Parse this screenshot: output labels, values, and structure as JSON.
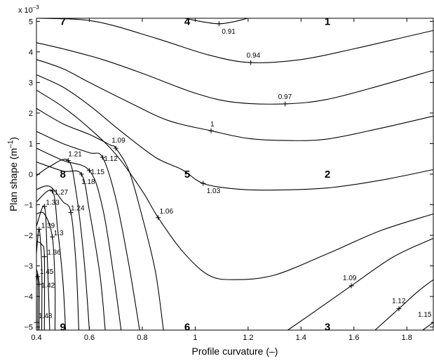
{
  "chart_data": {
    "type": "contour",
    "xlabel": "Profile curvature (–)",
    "ylabel_main": "Plan shape (m",
    "ylabel_sup": "–1",
    "ylabel_close": ")",
    "y_multiplier": "x 10",
    "y_multiplier_exp": "–3",
    "xlim": [
      0.4,
      1.9
    ],
    "ylim": [
      -5.1,
      5.1
    ],
    "x_ticks": [
      0.4,
      0.6,
      0.8,
      1,
      1.2,
      1.4,
      1.6,
      1.8
    ],
    "x_tick_labels": [
      "0.4",
      "0.6",
      "0.8",
      "1",
      "1.2",
      "1.4",
      "1.6",
      "1.8"
    ],
    "y_ticks": [
      5,
      4,
      3,
      2,
      1,
      0,
      -1,
      -2,
      -3,
      -4,
      -5
    ],
    "y_tick_labels": [
      "5",
      "4",
      "3",
      "2",
      "1",
      "0",
      "−1",
      "−2",
      "−3",
      "−4",
      "−5"
    ],
    "contours": [
      {
        "level": "0.91",
        "points": [
          [
            0.96,
            5.1
          ],
          [
            1.09,
            4.92
          ],
          [
            1.2,
            5.1
          ]
        ]
      },
      {
        "level": "0.94",
        "points": [
          [
            0.41,
            5.1
          ],
          [
            0.62,
            5.0
          ],
          [
            0.85,
            4.45
          ],
          [
            1.05,
            3.9
          ],
          [
            1.21,
            3.65
          ],
          [
            1.4,
            3.75
          ],
          [
            1.6,
            4.1
          ],
          [
            1.8,
            4.5
          ],
          [
            1.9,
            4.7
          ]
        ]
      },
      {
        "level": "0.97",
        "points": [
          [
            0.4,
            4.3
          ],
          [
            0.5,
            4.1
          ],
          [
            0.65,
            3.75
          ],
          [
            0.8,
            3.3
          ],
          [
            1.0,
            2.65
          ],
          [
            1.15,
            2.35
          ],
          [
            1.34,
            2.3
          ],
          [
            1.5,
            2.45
          ],
          [
            1.7,
            2.9
          ],
          [
            1.9,
            3.4
          ]
        ]
      },
      {
        "level": "1",
        "points": [
          [
            0.4,
            3.75
          ],
          [
            0.5,
            3.45
          ],
          [
            0.6,
            3.0
          ],
          [
            0.75,
            2.35
          ],
          [
            0.9,
            1.75
          ],
          [
            1.06,
            1.42
          ],
          [
            1.2,
            1.17
          ],
          [
            1.35,
            1.1
          ],
          [
            1.5,
            1.15
          ],
          [
            1.7,
            1.5
          ],
          [
            1.9,
            1.9
          ]
        ]
      },
      {
        "level": "1.03",
        "points": [
          [
            0.4,
            3.25
          ],
          [
            0.5,
            2.85
          ],
          [
            0.6,
            2.25
          ],
          [
            0.72,
            1.4
          ],
          [
            0.85,
            0.55
          ],
          [
            0.95,
            0.15
          ],
          [
            1.03,
            -0.3
          ],
          [
            1.15,
            -0.48
          ],
          [
            1.3,
            -0.52
          ],
          [
            1.5,
            -0.45
          ],
          [
            1.7,
            -0.2
          ],
          [
            1.9,
            0.15
          ]
        ]
      },
      {
        "level": "1.06",
        "points": [
          [
            0.4,
            2.75
          ],
          [
            0.5,
            2.2
          ],
          [
            0.6,
            1.5
          ],
          [
            0.7,
            0.65
          ],
          [
            0.8,
            -0.55
          ],
          [
            0.86,
            -1.42
          ],
          [
            0.95,
            -2.5
          ],
          [
            1.05,
            -3.3
          ],
          [
            1.15,
            -3.45
          ],
          [
            1.3,
            -3.3
          ],
          [
            1.5,
            -2.6
          ],
          [
            1.7,
            -1.85
          ],
          [
            1.9,
            -1.3
          ]
        ]
      },
      {
        "level": "1.09",
        "points": [
          [
            0.4,
            2.15
          ],
          [
            0.5,
            1.65
          ],
          [
            0.6,
            1.3
          ],
          [
            0.68,
            0.95
          ],
          [
            0.7,
            0.85
          ],
          [
            0.75,
            0.1
          ],
          [
            0.8,
            -1.4
          ],
          [
            0.85,
            -3.2
          ],
          [
            0.88,
            -5.1
          ]
        ]
      },
      {
        "level": "1.09",
        "points": [
          [
            1.35,
            -5.1
          ],
          [
            1.45,
            -4.5
          ],
          [
            1.59,
            -3.65
          ],
          [
            1.75,
            -2.7
          ],
          [
            1.9,
            -2.1
          ]
        ]
      },
      {
        "level": "1.12",
        "points": [
          [
            0.4,
            1.4
          ],
          [
            0.5,
            1.0
          ],
          [
            0.6,
            0.7
          ],
          [
            0.65,
            0.55
          ],
          [
            0.7,
            -0.8
          ],
          [
            0.75,
            -3.0
          ],
          [
            0.79,
            -5.1
          ]
        ]
      },
      {
        "level": "1.12",
        "points": [
          [
            1.68,
            -5.1
          ],
          [
            1.77,
            -4.4
          ],
          [
            1.84,
            -3.85
          ],
          [
            1.9,
            -3.45
          ]
        ]
      },
      {
        "level": "1.15",
        "points": [
          [
            0.4,
            0.85
          ],
          [
            0.5,
            0.45
          ],
          [
            0.6,
            0.12
          ],
          [
            0.65,
            -1.1
          ],
          [
            0.69,
            -3.2
          ],
          [
            0.72,
            -5.1
          ]
        ]
      },
      {
        "level": "1.15",
        "points": [
          [
            1.86,
            -5.1
          ],
          [
            1.9,
            -4.85
          ]
        ]
      },
      {
        "level": "1.18",
        "points": [
          [
            0.4,
            0.4
          ],
          [
            0.5,
            0.1
          ],
          [
            0.57,
            0.0
          ],
          [
            0.6,
            -1.2
          ],
          [
            0.64,
            -3.3
          ],
          [
            0.66,
            -5.1
          ]
        ]
      },
      {
        "level": "1.21",
        "points": [
          [
            0.4,
            -0.05
          ],
          [
            0.45,
            0.25
          ],
          [
            0.52,
            0.45
          ],
          [
            0.55,
            -0.6
          ],
          [
            0.58,
            -2.8
          ],
          [
            0.6,
            -5.1
          ]
        ]
      },
      {
        "level": "1.24",
        "points": [
          [
            0.4,
            -0.5
          ],
          [
            0.45,
            -0.4
          ],
          [
            0.5,
            -0.9
          ],
          [
            0.53,
            -1.25
          ],
          [
            0.55,
            -3.0
          ],
          [
            0.56,
            -5.1
          ]
        ]
      },
      {
        "level": "1.27",
        "points": [
          [
            0.4,
            -0.9
          ],
          [
            0.46,
            -0.55
          ],
          [
            0.48,
            -1.8
          ],
          [
            0.5,
            -3.5
          ],
          [
            0.51,
            -5.1
          ]
        ]
      },
      {
        "level": "1.3",
        "points": [
          [
            0.4,
            -1.3
          ],
          [
            0.43,
            -1.3
          ],
          [
            0.46,
            -2.05
          ],
          [
            0.47,
            -3.6
          ],
          [
            0.47,
            -5.1
          ]
        ]
      },
      {
        "level": "1.33",
        "points": [
          [
            0.4,
            -1.7
          ],
          [
            0.43,
            -1.05
          ],
          [
            0.44,
            -2.5
          ],
          [
            0.45,
            -5.1
          ]
        ]
      },
      {
        "level": "1.36",
        "points": [
          [
            0.4,
            -2.2
          ],
          [
            0.42,
            -2.3
          ],
          [
            0.43,
            -2.7
          ],
          [
            0.43,
            -5.1
          ]
        ]
      },
      {
        "level": "1.39",
        "points": [
          [
            0.4,
            -2.6
          ],
          [
            0.41,
            -1.8
          ],
          [
            0.42,
            -3.0
          ],
          [
            0.42,
            -5.1
          ]
        ]
      },
      {
        "level": "1.42",
        "points": [
          [
            0.4,
            -3.1
          ],
          [
            0.41,
            -3.6
          ],
          [
            0.41,
            -5.1
          ]
        ]
      },
      {
        "level": "1.45",
        "points": [
          [
            0.4,
            -3.5
          ],
          [
            0.405,
            -3.35
          ],
          [
            0.405,
            -5.1
          ]
        ]
      },
      {
        "level": "1.48",
        "points": [
          [
            0.4,
            -4.1
          ],
          [
            0.4,
            -4.85
          ]
        ]
      }
    ],
    "contour_labels": [
      {
        "text": "0.91",
        "x": 1.09,
        "y": 4.92,
        "dx": 4,
        "dy": 14
      },
      {
        "text": "0.94",
        "x": 1.21,
        "y": 3.65,
        "dx": -6,
        "dy": -7
      },
      {
        "text": "0.97",
        "x": 1.34,
        "y": 2.3,
        "dx": -10,
        "dy": -7
      },
      {
        "text": "1",
        "x": 1.06,
        "y": 1.42,
        "dx": -1,
        "dy": -6
      },
      {
        "text": "1.03",
        "x": 1.03,
        "y": -0.3,
        "dx": 5,
        "dy": 14
      },
      {
        "text": "1.06",
        "x": 0.86,
        "y": -1.42,
        "dx": 2,
        "dy": -6
      },
      {
        "text": "1.09",
        "x": 0.7,
        "y": 0.85,
        "dx": -6,
        "dy": -8
      },
      {
        "text": "1.09",
        "x": 1.59,
        "y": -3.65,
        "dx": -12,
        "dy": -8
      },
      {
        "text": "1.12",
        "x": 0.65,
        "y": 0.55,
        "dx": 2,
        "dy": 5
      },
      {
        "text": "1.12",
        "x": 1.77,
        "y": -4.4,
        "dx": -10,
        "dy": -8
      },
      {
        "text": "1.15",
        "x": 0.6,
        "y": 0.12,
        "dx": 2,
        "dy": 5
      },
      {
        "text": "1.15",
        "x": 1.9,
        "y": -4.85,
        "dx": -22,
        "dy": -8
      },
      {
        "text": "1.18",
        "x": 0.57,
        "y": 0.0,
        "dx": 0,
        "dy": 14
      },
      {
        "text": "1.21",
        "x": 0.52,
        "y": 0.45,
        "dx": 0,
        "dy": -6
      },
      {
        "text": "1.24",
        "x": 0.53,
        "y": -1.25,
        "dx": 0,
        "dy": -3
      },
      {
        "text": "1.27",
        "x": 0.46,
        "y": -0.55,
        "dx": 3,
        "dy": 5
      },
      {
        "text": "1.3",
        "x": 0.46,
        "y": -2.05,
        "dx": 2,
        "dy": -2
      },
      {
        "text": "1.33",
        "x": 0.43,
        "y": -1.05,
        "dx": 2,
        "dy": -2
      },
      {
        "text": "1.36",
        "x": 0.43,
        "y": -2.7,
        "dx": 4,
        "dy": -3
      },
      {
        "text": "1.39",
        "x": 0.41,
        "y": -1.8,
        "dx": 3,
        "dy": -2
      },
      {
        "text": "1.42",
        "x": 0.41,
        "y": -3.6,
        "dx": 3,
        "dy": 5
      },
      {
        "text": "1.45",
        "x": 0.405,
        "y": -3.35,
        "dx": 3,
        "dy": -4
      },
      {
        "text": "1.48",
        "x": 0.4,
        "y": -4.85,
        "dx": 3,
        "dy": -6
      }
    ],
    "region_labels": [
      {
        "text": "7",
        "x": 0.5,
        "y": 5.0
      },
      {
        "text": "4",
        "x": 0.97,
        "y": 5.0
      },
      {
        "text": "1",
        "x": 1.5,
        "y": 5.0
      },
      {
        "text": "8",
        "x": 0.5,
        "y": 0.0
      },
      {
        "text": "5",
        "x": 0.97,
        "y": 0.0
      },
      {
        "text": "2",
        "x": 1.5,
        "y": 0.0
      },
      {
        "text": "9",
        "x": 0.5,
        "y": -5.0
      },
      {
        "text": "6",
        "x": 0.97,
        "y": -5.0
      },
      {
        "text": "3",
        "x": 1.5,
        "y": -5.0
      }
    ]
  }
}
